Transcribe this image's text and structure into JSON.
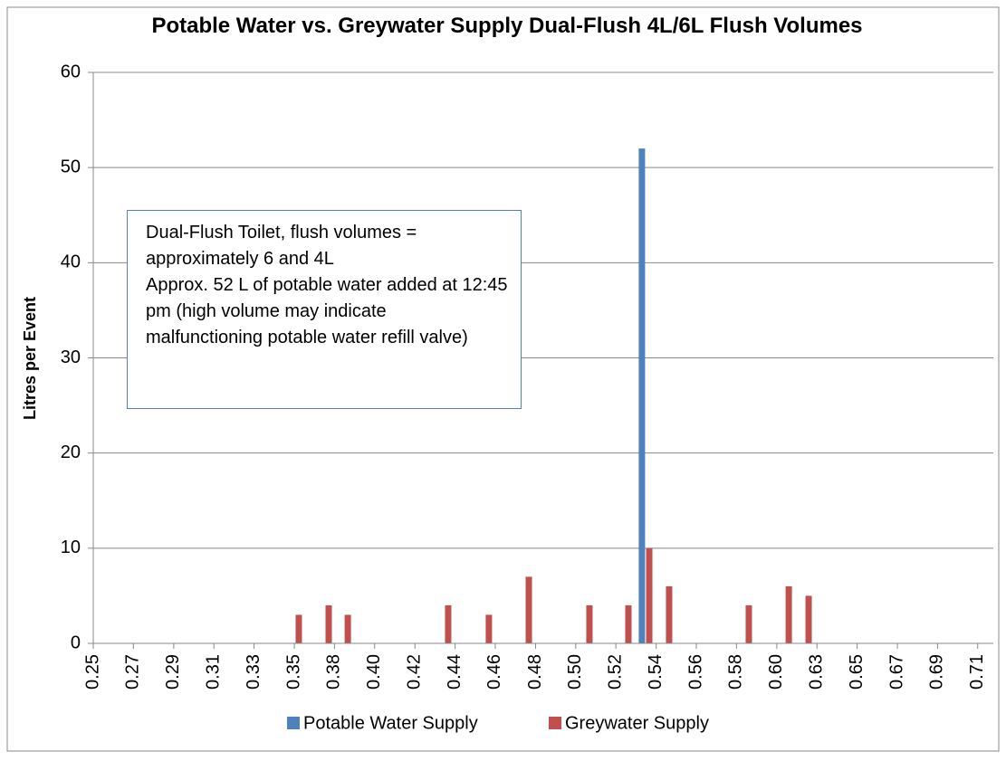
{
  "chart_data": {
    "type": "bar",
    "title": "Potable Water vs. Greywater Supply Dual-Flush 4L/6L Flush Volumes",
    "ylabel": "Litres per Event",
    "annotation": [
      "Dual-Flush Toilet, flush volumes = approximately 6 and 4L",
      "Approx. 52 L of potable water added at 12:45 pm (high volume may indicate malfunctioning potable water refill valve)"
    ],
    "series": [
      {
        "name": "Potable Water Supply",
        "color": "#4f81bd",
        "x": [
          0.5343
        ],
        "values": [
          52
        ]
      },
      {
        "name": "Greywater Supply",
        "color": "#c0504d",
        "x": [
          0.3565,
          0.372,
          0.3819,
          0.4339,
          0.455,
          0.4757,
          0.5071,
          0.5273,
          0.5381,
          0.5484,
          0.5897,
          0.6104,
          0.6207
        ],
        "values": [
          3,
          4,
          3,
          4,
          3,
          7,
          4,
          4,
          10,
          6,
          4,
          6,
          5
        ]
      }
    ],
    "xlim": [
      0.25,
      0.7164
    ],
    "xticks": [
      {
        "value": 0.25,
        "label": "0.25"
      },
      {
        "value": 0.2708,
        "label": "0.27"
      },
      {
        "value": 0.2917,
        "label": "0.29"
      },
      {
        "value": 0.3125,
        "label": "0.31"
      },
      {
        "value": 0.3333,
        "label": "0.33"
      },
      {
        "value": 0.3542,
        "label": "0.35"
      },
      {
        "value": 0.375,
        "label": "0.38"
      },
      {
        "value": 0.3958,
        "label": "0.40"
      },
      {
        "value": 0.4167,
        "label": "0.42"
      },
      {
        "value": 0.4375,
        "label": "0.44"
      },
      {
        "value": 0.4583,
        "label": "0.46"
      },
      {
        "value": 0.4792,
        "label": "0.48"
      },
      {
        "value": 0.5,
        "label": "0.50"
      },
      {
        "value": 0.5208,
        "label": "0.52"
      },
      {
        "value": 0.5417,
        "label": "0.54"
      },
      {
        "value": 0.5625,
        "label": "0.56"
      },
      {
        "value": 0.5833,
        "label": "0.58"
      },
      {
        "value": 0.6042,
        "label": "0.60"
      },
      {
        "value": 0.625,
        "label": "0.63"
      },
      {
        "value": 0.6458,
        "label": "0.65"
      },
      {
        "value": 0.6667,
        "label": "0.67"
      },
      {
        "value": 0.6875,
        "label": "0.69"
      },
      {
        "value": 0.7083,
        "label": "0.71"
      }
    ],
    "ylim": [
      0,
      60
    ],
    "yticks": [
      0,
      10,
      20,
      30,
      40,
      50,
      60
    ],
    "grid": true,
    "legend": "bottom"
  }
}
